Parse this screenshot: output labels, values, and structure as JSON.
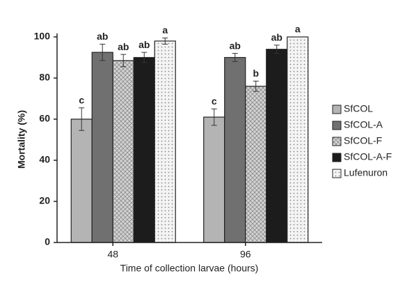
{
  "chart_data": {
    "type": "bar",
    "x_label": "Time of collection larvae (hours)",
    "y_label": "Mortality (%)",
    "categories": [
      "48",
      "96"
    ],
    "ylim": [
      0,
      100
    ],
    "yticks": [
      0,
      20,
      40,
      60,
      80,
      100
    ],
    "series": [
      {
        "name": "SfCOL",
        "color": "#b4b4b4",
        "values": [
          60,
          61
        ],
        "errors": [
          5.5,
          4
        ],
        "labels": [
          "c",
          "c"
        ]
      },
      {
        "name": "SfCOL-A",
        "color": "#707070",
        "values": [
          92.5,
          90
        ],
        "errors": [
          4,
          2
        ],
        "labels": [
          "ab",
          "ab"
        ]
      },
      {
        "name": "SfCOL-F",
        "color": "#d4d4d4",
        "values": [
          88.5,
          76
        ],
        "errors": [
          3,
          2.5
        ],
        "labels": [
          "ab",
          "b"
        ]
      },
      {
        "name": "SfCOL-A-F",
        "color": "#1c1c1c",
        "values": [
          90,
          94
        ],
        "errors": [
          2.5,
          2
        ],
        "labels": [
          "ab",
          "ab"
        ]
      },
      {
        "name": "Lufenuron",
        "color": "#f4f4f4",
        "values": [
          98,
          100
        ],
        "errors": [
          1.5,
          0
        ],
        "labels": [
          "a",
          "a"
        ]
      }
    ]
  }
}
